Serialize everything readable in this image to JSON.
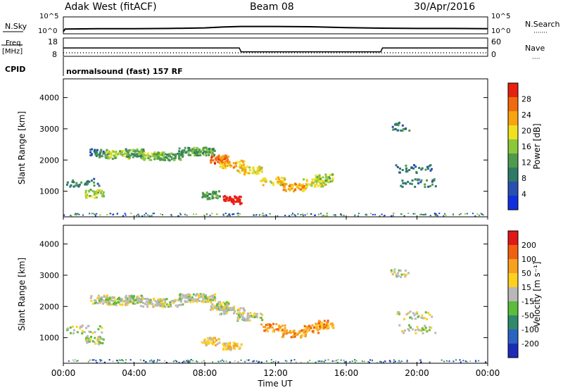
{
  "header": {
    "station": "Adak West (fitACF)",
    "beam": "Beam 08",
    "date": "30/Apr/2016"
  },
  "sky_panel": {
    "left_label": "N.Sky",
    "left_ticks": [
      "10^5",
      "10^0"
    ],
    "right_label": "N.Search",
    "right_ticks": [
      "10^5",
      "10^0"
    ]
  },
  "freq_panel": {
    "left_label_line1": "Freq.",
    "left_label_line2": "[MHz]",
    "left_ticks": [
      "18",
      "8"
    ],
    "right_label": "Nave",
    "right_ticks": [
      "60",
      "0"
    ],
    "cpid_label": "CPID",
    "program": "normalsound (fast) 157 RF"
  },
  "power_panel": {
    "ylabel": "Slant Range [km]",
    "yticks": [
      "4000",
      "3000",
      "2000",
      "1000"
    ],
    "colorbar_label": "Power [dB]",
    "colorbar_ticks": [
      "28",
      "24",
      "20",
      "16",
      "12",
      "8",
      "4"
    ],
    "colors": [
      "#1030e0",
      "#2850b0",
      "#2e7a66",
      "#4f9a4c",
      "#8cc83c",
      "#f0e020",
      "#f8a410",
      "#f06a10",
      "#e82010"
    ]
  },
  "velocity_panel": {
    "ylabel": "Slant Range [km]",
    "yticks": [
      "4000",
      "3000",
      "2000",
      "1000"
    ],
    "colorbar_label": "Velocity [m s⁻¹]",
    "colorbar_ticks": [
      "200",
      "100",
      "50",
      "15",
      "-15",
      "-50",
      "-100",
      "-200"
    ],
    "colors": [
      "#1c2cb8",
      "#2a64c0",
      "#2e8a6a",
      "#5cbc3c",
      "#b8b8b8",
      "#ffd020",
      "#f8a020",
      "#f06010",
      "#e01818"
    ]
  },
  "xaxis": {
    "label": "Time UT",
    "ticks": [
      "00:00",
      "04:00",
      "08:00",
      "12:00",
      "16:00",
      "20:00",
      "00:00"
    ]
  },
  "chart_data": [
    {
      "type": "line",
      "title": "N.Sky / N.Search",
      "x_range": [
        0,
        24
      ],
      "ylim_log10": [
        0,
        5
      ],
      "series": [
        {
          "name": "N.Sky",
          "x": [
            0.0,
            0.1,
            2,
            4,
            6,
            8,
            9,
            10,
            12,
            14,
            16,
            18,
            20,
            22,
            24
          ],
          "y_log10": [
            0.3,
            1.2,
            1.3,
            1.3,
            1.4,
            1.6,
            1.9,
            2.1,
            2.1,
            2.0,
            1.7,
            1.5,
            1.4,
            1.4,
            1.3
          ]
        }
      ]
    },
    {
      "type": "line",
      "title": "Freq. / Nave",
      "x_range": [
        0,
        24
      ],
      "ylim": [
        8,
        18
      ],
      "series": [
        {
          "name": "Freq.",
          "x": [
            0,
            9.95,
            10.05,
            17.95,
            18.05,
            24
          ],
          "y": [
            12.5,
            12.5,
            10.0,
            10.0,
            12.5,
            12.5
          ]
        },
        {
          "name": "Nave",
          "x": [
            0,
            24
          ],
          "y": [
            8,
            8
          ]
        }
      ]
    },
    {
      "type": "heatmap",
      "title": "Power [dB]",
      "x_range": [
        0,
        24
      ],
      "ylim": [
        180,
        4600
      ],
      "cells": [
        [
          2.0,
          2250,
          2,
          40,
          3
        ],
        [
          3.0,
          2200,
          4,
          60,
          4
        ],
        [
          4.0,
          2250,
          3,
          60,
          3
        ],
        [
          5.0,
          2150,
          4,
          60,
          4
        ],
        [
          6.0,
          2150,
          3,
          50,
          4
        ],
        [
          7.0,
          2300,
          3,
          50,
          3
        ],
        [
          8.0,
          2300,
          3,
          60,
          3
        ],
        [
          8.8,
          2050,
          7,
          60,
          3
        ],
        [
          9.5,
          1900,
          6,
          50,
          4
        ],
        [
          10.5,
          1700,
          5,
          50,
          4
        ],
        [
          11.8,
          1350,
          5,
          40,
          4
        ],
        [
          13.0,
          1150,
          6,
          50,
          4
        ],
        [
          14.2,
          1300,
          5,
          40,
          4
        ],
        [
          14.7,
          1450,
          4,
          40,
          3
        ],
        [
          1.2,
          1300,
          2,
          30,
          6
        ],
        [
          1.7,
          950,
          4,
          40,
          3
        ],
        [
          9.5,
          750,
          9,
          50,
          3
        ],
        [
          8.3,
          900,
          3,
          40,
          3
        ],
        [
          20.0,
          1300,
          2,
          30,
          6
        ],
        [
          19.8,
          1750,
          2,
          30,
          6
        ],
        [
          19.0,
          3100,
          2,
          20,
          3
        ]
      ]
    },
    {
      "type": "heatmap",
      "title": "Velocity [m s⁻¹]",
      "x_range": [
        0,
        24
      ],
      "ylim": [
        180,
        4600
      ],
      "cells": [
        [
          2.0,
          2250,
          4,
          40,
          3
        ],
        [
          3.0,
          2200,
          4,
          60,
          4
        ],
        [
          4.0,
          2250,
          4,
          60,
          3
        ],
        [
          5.0,
          2150,
          4,
          60,
          4
        ],
        [
          6.0,
          2150,
          4,
          50,
          4
        ],
        [
          7.0,
          2300,
          4,
          50,
          3
        ],
        [
          8.0,
          2300,
          4,
          60,
          3
        ],
        [
          8.8,
          2050,
          4,
          60,
          3
        ],
        [
          9.5,
          1900,
          4,
          50,
          4
        ],
        [
          10.5,
          1700,
          4,
          50,
          4
        ],
        [
          11.8,
          1350,
          6,
          40,
          4
        ],
        [
          13.0,
          1150,
          6,
          50,
          4
        ],
        [
          14.2,
          1300,
          6,
          40,
          4
        ],
        [
          14.7,
          1450,
          6,
          40,
          3
        ],
        [
          1.2,
          1300,
          4,
          30,
          6
        ],
        [
          1.7,
          950,
          4,
          40,
          3
        ],
        [
          9.5,
          750,
          5,
          50,
          3
        ],
        [
          8.3,
          900,
          5,
          40,
          3
        ],
        [
          20.0,
          1300,
          4,
          30,
          6
        ],
        [
          19.8,
          1750,
          4,
          30,
          6
        ],
        [
          19.0,
          3100,
          4,
          20,
          3
        ]
      ]
    }
  ]
}
